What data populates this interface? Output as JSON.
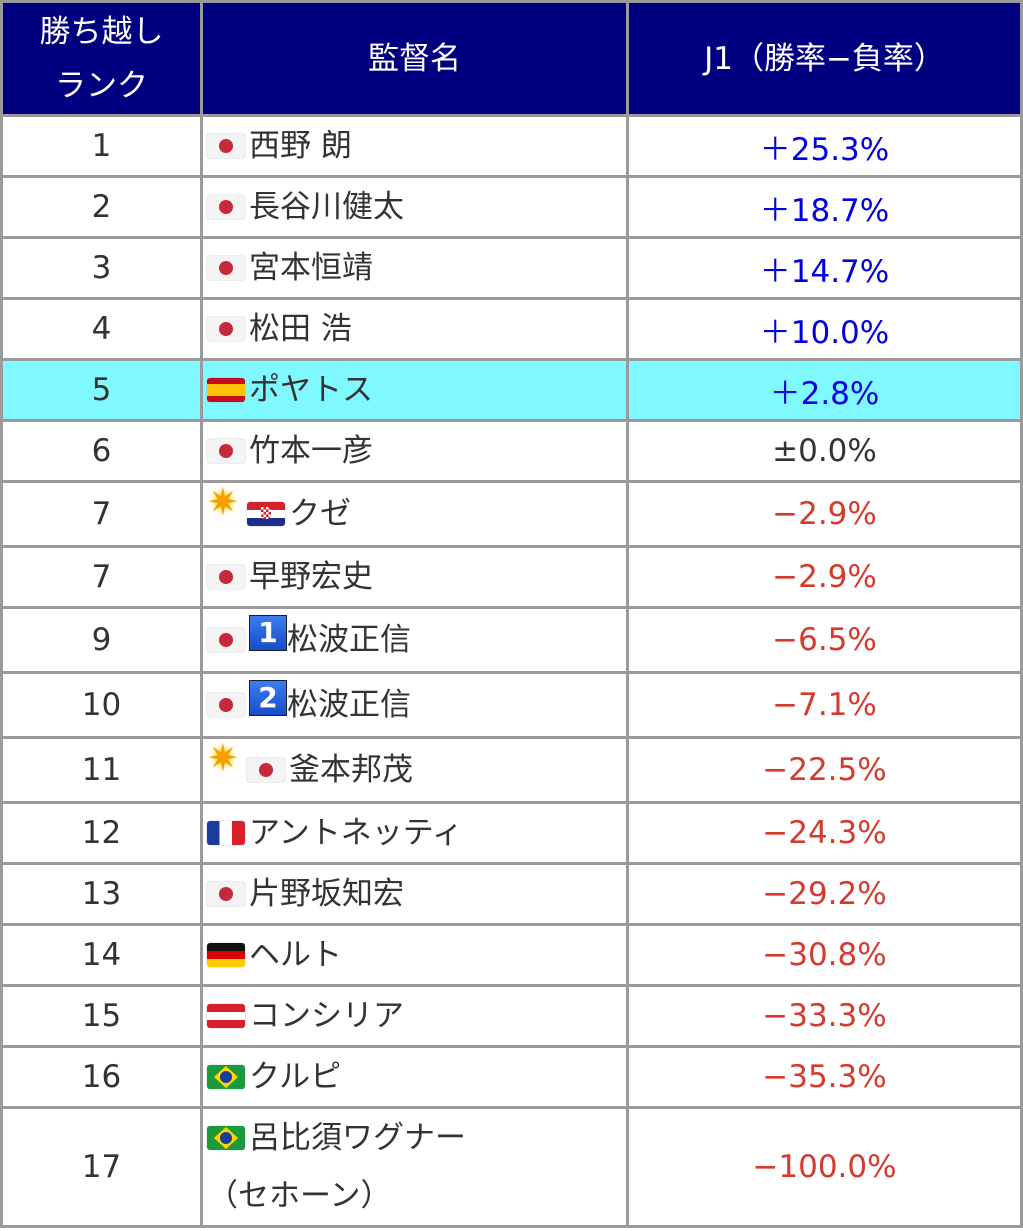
{
  "header": {
    "rank": "勝ち越しランク",
    "rank_line1": "勝ち越し",
    "rank_line2": "ランク",
    "name": "監督名",
    "value": "J1（勝率−負率）"
  },
  "colors": {
    "header_bg": "#000080",
    "positive": "#0000e0",
    "negative": "#d63a2c",
    "highlight": "#80f8ff"
  },
  "rows": [
    {
      "rank": "1",
      "flag": "japan",
      "name": "西野 朗",
      "value": "＋25.3%",
      "sign": "pos"
    },
    {
      "rank": "2",
      "flag": "japan",
      "name": "長谷川健太",
      "value": "＋18.7%",
      "sign": "pos"
    },
    {
      "rank": "3",
      "flag": "japan",
      "name": "宮本恒靖",
      "value": "＋14.7%",
      "sign": "pos"
    },
    {
      "rank": "4",
      "flag": "japan",
      "name": "松田 浩",
      "value": "＋10.0%",
      "sign": "pos"
    },
    {
      "rank": "5",
      "flag": "spain",
      "name": "ポヤトス",
      "value": "＋2.8%",
      "sign": "pos",
      "highlight": true
    },
    {
      "rank": "6",
      "flag": "japan",
      "name": "竹本一彦",
      "value": "±0.0%",
      "sign": "zero"
    },
    {
      "rank": "7",
      "flag": "croatia",
      "sparkle": true,
      "name": "クゼ",
      "value": "−2.9%",
      "sign": "neg"
    },
    {
      "rank": "7",
      "flag": "japan",
      "name": "早野宏史",
      "value": "−2.9%",
      "sign": "neg"
    },
    {
      "rank": "9",
      "flag": "japan",
      "badge": "1",
      "name": "松波正信",
      "value": "−6.5%",
      "sign": "neg"
    },
    {
      "rank": "10",
      "flag": "japan",
      "badge": "2",
      "name": "松波正信",
      "value": "−7.1%",
      "sign": "neg"
    },
    {
      "rank": "11",
      "flag": "japan",
      "sparkle": true,
      "name": "釜本邦茂",
      "value": "−22.5%",
      "sign": "neg"
    },
    {
      "rank": "12",
      "flag": "france",
      "name": "アントネッティ",
      "value": "−24.3%",
      "sign": "neg"
    },
    {
      "rank": "13",
      "flag": "japan",
      "name": "片野坂知宏",
      "value": "−29.2%",
      "sign": "neg"
    },
    {
      "rank": "14",
      "flag": "germany",
      "name": "ヘルト",
      "value": "−30.8%",
      "sign": "neg"
    },
    {
      "rank": "15",
      "flag": "austria",
      "name": "コンシリア",
      "value": "−33.3%",
      "sign": "neg"
    },
    {
      "rank": "16",
      "flag": "brazil",
      "name": "クルピ",
      "value": "−35.3%",
      "sign": "neg"
    },
    {
      "rank": "17",
      "flag": "brazil",
      "name": "呂比須ワグナー",
      "name_line2": "（セホーン）",
      "value": "−100.0%",
      "sign": "neg"
    }
  ]
}
